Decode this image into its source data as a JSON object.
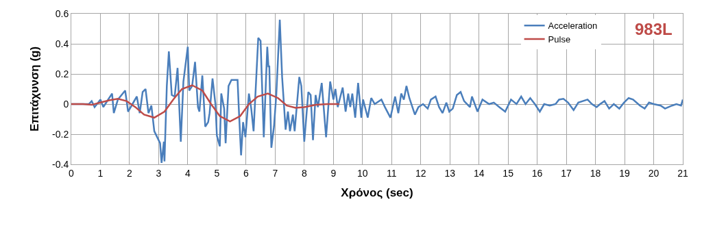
{
  "chart_data": {
    "type": "line",
    "xlabel": "Χρόνος (sec)",
    "ylabel": "Επιτάχυνση (g)",
    "xlim": [
      0,
      21
    ],
    "xticks": [
      0,
      1,
      2,
      3,
      4,
      5,
      6,
      7,
      8,
      9,
      10,
      11,
      12,
      13,
      14,
      15,
      16,
      17,
      18,
      19,
      20,
      21
    ],
    "ylim": [
      -0.4,
      0.6
    ],
    "yticks": [
      -0.4,
      -0.2,
      0,
      0.2,
      0.4,
      0.6
    ],
    "grid": true,
    "legend": "top right",
    "line_style": "solid",
    "marker": "none",
    "annotations": [
      "983L"
    ],
    "series": [
      {
        "name": "Acceleration",
        "color": "#4a7ebb",
        "x": [
          0,
          0.6,
          0.7,
          0.8,
          1.0,
          1.1,
          1.2,
          1.4,
          1.46,
          1.6,
          1.85,
          1.95,
          2.1,
          2.25,
          2.35,
          2.45,
          2.55,
          2.65,
          2.75,
          2.85,
          2.95,
          3.05,
          3.1,
          3.18,
          3.2,
          3.28,
          3.35,
          3.45,
          3.55,
          3.65,
          3.76,
          3.85,
          4.0,
          4.05,
          4.15,
          4.25,
          4.35,
          4.4,
          4.5,
          4.6,
          4.7,
          4.75,
          4.85,
          4.95,
          5.0,
          5.1,
          5.15,
          5.25,
          5.3,
          5.4,
          5.5,
          5.67,
          5.71,
          5.75,
          5.83,
          5.9,
          5.98,
          6.1,
          6.18,
          6.26,
          6.42,
          6.5,
          6.61,
          6.73,
          6.77,
          6.8,
          6.87,
          6.96,
          7.04,
          7.16,
          7.24,
          7.36,
          7.44,
          7.51,
          7.61,
          7.67,
          7.83,
          7.9,
          8.0,
          8.14,
          8.22,
          8.3,
          8.39,
          8.47,
          8.6,
          8.75,
          8.89,
          9.0,
          9.07,
          9.15,
          9.32,
          9.42,
          9.51,
          9.58,
          9.65,
          9.75,
          9.85,
          9.96,
          10.02,
          10.18,
          10.3,
          10.42,
          10.65,
          10.77,
          10.96,
          11.12,
          11.23,
          11.33,
          11.42,
          11.51,
          11.61,
          11.8,
          11.92,
          12.08,
          12.24,
          12.35,
          12.51,
          12.63,
          12.75,
          12.88,
          12.98,
          13.1,
          13.24,
          13.37,
          13.49,
          13.69,
          13.76,
          13.95,
          14.12,
          14.35,
          14.51,
          14.7,
          14.9,
          15.1,
          15.29,
          15.45,
          15.6,
          15.76,
          15.92,
          16.09,
          16.24,
          16.43,
          16.63,
          16.75,
          16.9,
          17.06,
          17.25,
          17.41,
          17.73,
          17.88,
          18.04,
          18.16,
          18.31,
          18.47,
          18.63,
          18.82,
          18.98,
          19.14,
          19.29,
          19.53,
          19.69,
          19.84,
          20.0,
          20.24,
          20.39,
          20.63,
          20.78,
          20.94,
          21
        ],
        "values": [
          0,
          0,
          0.02,
          -0.02,
          0.03,
          -0.02,
          0.01,
          0.07,
          -0.06,
          0.03,
          0.09,
          -0.05,
          0,
          0.05,
          -0.06,
          0.08,
          0.1,
          -0.06,
          -0.01,
          -0.18,
          -0.22,
          -0.26,
          -0.39,
          -0.25,
          -0.38,
          0.12,
          0.35,
          0.06,
          0.05,
          0.24,
          -0.25,
          0.15,
          0.38,
          0.09,
          0.12,
          0.28,
          -0.02,
          -0.05,
          0.19,
          -0.15,
          -0.12,
          -0.06,
          0.17,
          0,
          -0.21,
          -0.28,
          0.07,
          -0.03,
          -0.26,
          0.12,
          0.16,
          0.16,
          0.16,
          -0.02,
          -0.34,
          -0.12,
          -0.22,
          0.07,
          -0.03,
          -0.18,
          0.44,
          0.42,
          -0.22,
          0.38,
          0.25,
          0.25,
          -0.29,
          -0.15,
          0.06,
          0.56,
          0.18,
          -0.17,
          -0.05,
          -0.18,
          -0.07,
          -0.18,
          0.18,
          0.12,
          -0.25,
          0.08,
          0.06,
          -0.24,
          0.06,
          -0.02,
          0.14,
          -0.22,
          0.15,
          0.03,
          0.1,
          -0.02,
          0.11,
          -0.05,
          0.07,
          -0.02,
          0.07,
          -0.09,
          0.14,
          -0.09,
          0.03,
          -0.09,
          0.04,
          0,
          0.03,
          -0.02,
          -0.09,
          0.05,
          -0.06,
          0.07,
          0.03,
          0.12,
          0.04,
          -0.07,
          -0.02,
          0,
          -0.03,
          0.03,
          0.05,
          -0.02,
          -0.06,
          0.01,
          -0.05,
          -0.03,
          0.06,
          0.08,
          0.02,
          -0.02,
          0.05,
          -0.05,
          0.03,
          0,
          0.01,
          -0.02,
          -0.05,
          0.03,
          0,
          0.05,
          0,
          0.04,
          0,
          -0.05,
          0,
          -0.01,
          0,
          0.03,
          0.035,
          0.01,
          -0.04,
          0.01,
          0.03,
          0,
          -0.02,
          0,
          0.02,
          -0.03,
          0,
          -0.03,
          0.01,
          0.04,
          0.03,
          -0.01,
          -0.03,
          0.01,
          0,
          -0.01,
          -0.03,
          -0.01,
          0,
          -0.01,
          0.03
        ]
      },
      {
        "name": "Pulse",
        "color": "#be4b48",
        "x": [
          0,
          0.4,
          0.7,
          1.0,
          1.3,
          1.6,
          1.9,
          2.2,
          2.5,
          2.85,
          3.2,
          3.5,
          3.8,
          4.15,
          4.5,
          4.8,
          5.1,
          5.45,
          5.8,
          6.1,
          6.4,
          6.75,
          7.1,
          7.4,
          7.7,
          8.0,
          8.4,
          8.8,
          9.2
        ],
        "values": [
          0,
          0,
          -0.005,
          0.01,
          0.025,
          0.035,
          0.02,
          -0.02,
          -0.07,
          -0.09,
          -0.05,
          0.03,
          0.1,
          0.125,
          0.09,
          0,
          -0.08,
          -0.115,
          -0.08,
          0,
          0.05,
          0.07,
          0.04,
          -0.01,
          -0.025,
          -0.02,
          -0.005,
          0,
          0
        ]
      }
    ]
  }
}
